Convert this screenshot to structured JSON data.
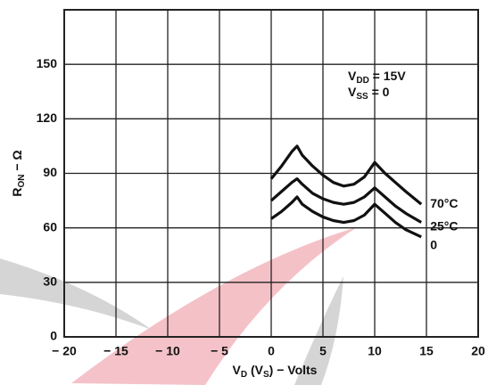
{
  "chart_data": {
    "type": "line",
    "xlabel": [
      {
        "text": "V"
      },
      {
        "text": "D",
        "sub": true
      },
      {
        "text": " (V"
      },
      {
        "text": "S",
        "sub": true
      },
      {
        "text": ") − Volts"
      }
    ],
    "ylabel": [
      {
        "text": "R"
      },
      {
        "text": "ON",
        "sub": true
      },
      {
        "text": " − Ω"
      }
    ],
    "annotations": [
      [
        {
          "text": "V"
        },
        {
          "text": "DD",
          "sub": true
        },
        {
          "text": " = 15V"
        }
      ],
      [
        {
          "text": "V"
        },
        {
          "text": "SS",
          "sub": true
        },
        {
          "text": " = 0"
        }
      ]
    ],
    "x": [
      0,
      1,
      2,
      2.5,
      3,
      4,
      5,
      6,
      7,
      8,
      9,
      10,
      11,
      12,
      13,
      14.5
    ],
    "series": [
      {
        "name": "70°C",
        "color": "#111111",
        "values": [
          87,
          94,
          102,
          105,
          100,
          94,
          89,
          85,
          83,
          84,
          88,
          96,
          90,
          85,
          80,
          73
        ]
      },
      {
        "name": "25°C",
        "color": "#111111",
        "values": [
          75,
          80,
          85,
          87,
          84,
          79,
          76,
          74,
          73,
          74,
          77,
          82,
          77,
          72,
          68,
          63
        ]
      },
      {
        "name": "0",
        "color": "#111111",
        "values": [
          65,
          69,
          74,
          77,
          73,
          69,
          66,
          64,
          63,
          64,
          67,
          73,
          68,
          63,
          59,
          55
        ]
      }
    ],
    "xlim": [
      -20,
      20
    ],
    "xticks": [
      {
        "value": -20,
        "label": "− 20"
      },
      {
        "value": -15,
        "label": "− 15"
      },
      {
        "value": -10,
        "label": "− 10"
      },
      {
        "value": -5,
        "label": "− 5"
      },
      0,
      5,
      10,
      15,
      20
    ],
    "ylim": [
      0,
      180
    ],
    "yticks": [
      0,
      30,
      60,
      90,
      120,
      150
    ],
    "grid": true
  }
}
